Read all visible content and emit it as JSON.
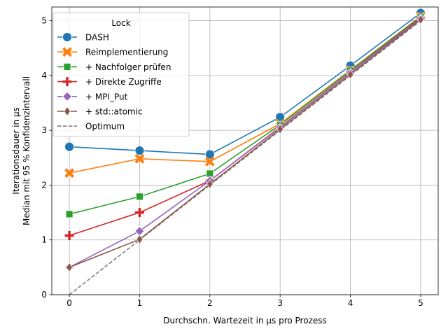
{
  "chart_data": {
    "type": "line",
    "title": "",
    "xlabel": "Durchschn. Wartezeit in µs pro Prozess",
    "ylabel_lines": [
      "Iterationsdauer in µs",
      "Median mit 95 % Konfidenzintervall"
    ],
    "xlim": [
      -0.25,
      5.25
    ],
    "ylim": [
      0,
      5.25
    ],
    "xticks": [
      0,
      1,
      2,
      3,
      4,
      5
    ],
    "yticks": [
      0,
      1,
      2,
      3,
      4,
      5
    ],
    "grid": true,
    "legend": {
      "title": "Lock",
      "placement": "top-left"
    },
    "x": [
      0,
      1,
      2,
      3,
      4,
      5
    ],
    "series": [
      {
        "name": "DASH",
        "values": [
          2.7,
          2.63,
          2.56,
          3.24,
          4.18,
          5.14
        ],
        "color": "#1f77b4",
        "marker": "circle"
      },
      {
        "name": "Reimplementierung",
        "values": [
          2.22,
          2.48,
          2.43,
          3.12,
          4.1,
          5.08
        ],
        "color": "#ff7f0e",
        "marker": "x"
      },
      {
        "name": "+ Nachfolger prüfen",
        "values": [
          1.47,
          1.79,
          2.21,
          3.1,
          4.09,
          5.07
        ],
        "color": "#2ca02c",
        "marker": "square"
      },
      {
        "name": "+ Direkte Zugriffe",
        "values": [
          1.08,
          1.5,
          2.08,
          3.06,
          4.06,
          5.05
        ],
        "color": "#d62728",
        "marker": "plus"
      },
      {
        "name": "+ MPI_Put",
        "values": [
          0.5,
          1.16,
          2.08,
          3.05,
          4.05,
          5.04
        ],
        "color": "#9467bd",
        "marker": "diamond"
      },
      {
        "name": "+ std::atomic",
        "values": [
          0.5,
          1.01,
          2.02,
          3.02,
          4.02,
          5.02
        ],
        "color": "#8c564b",
        "marker": "thin-diamond"
      },
      {
        "name": "Optimum",
        "values": [
          0,
          1,
          2,
          3,
          4,
          5
        ],
        "color": "#7f7f7f",
        "marker": "none",
        "dashed": true
      }
    ]
  }
}
